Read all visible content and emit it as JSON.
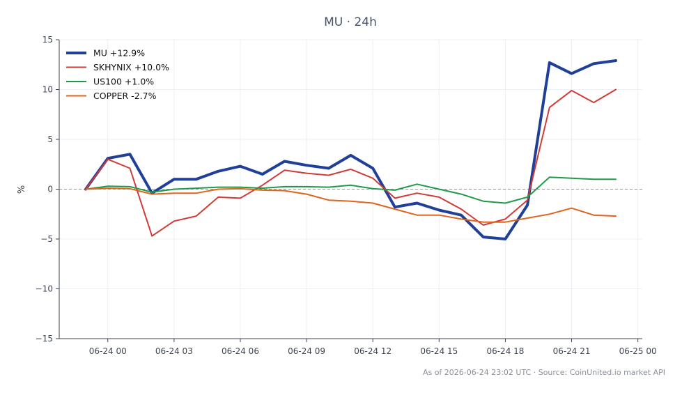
{
  "chart_data": {
    "type": "line",
    "title": "MU · 24h",
    "xlabel": "",
    "ylabel": "%",
    "ylim": [
      -15,
      15
    ],
    "yticks": [
      15,
      10,
      5,
      0,
      -5,
      -10,
      -15
    ],
    "yticklabels": [
      "15",
      "10",
      "5",
      "0",
      "−5",
      "−10",
      "−15"
    ],
    "x_hours": [
      -1,
      0,
      1,
      2,
      3,
      4,
      5,
      6,
      7,
      8,
      9,
      10,
      11,
      12,
      13,
      14,
      15,
      16,
      17,
      18,
      19,
      20,
      21,
      22,
      23
    ],
    "x_range_hours": [
      -2.2,
      24.2
    ],
    "x_ticks": [
      {
        "hour": 0,
        "label": "06-24 00"
      },
      {
        "hour": 3,
        "label": "06-24 03"
      },
      {
        "hour": 6,
        "label": "06-24 06"
      },
      {
        "hour": 9,
        "label": "06-24 09"
      },
      {
        "hour": 12,
        "label": "06-24 12"
      },
      {
        "hour": 15,
        "label": "06-24 15"
      },
      {
        "hour": 18,
        "label": "06-24 18"
      },
      {
        "hour": 21,
        "label": "06-24 21"
      },
      {
        "hour": 24,
        "label": "06-25 00"
      }
    ],
    "grid": true,
    "zero_line": true,
    "legend_position": "top-left",
    "series": [
      {
        "name": "MU +12.9%",
        "color": "#1f3f99",
        "width": 4,
        "values": [
          0,
          3.1,
          3.5,
          -0.4,
          1.0,
          1.0,
          1.8,
          2.3,
          1.5,
          2.8,
          2.4,
          2.1,
          3.4,
          2.1,
          -1.8,
          -1.4,
          -2.1,
          -2.6,
          -4.8,
          -5.0,
          -1.6,
          12.7,
          11.6,
          12.6,
          12.9
        ]
      },
      {
        "name": "SKHYNIX +10.0%",
        "color": "#d13a36",
        "width": 2,
        "values": [
          0,
          3.0,
          2.1,
          -4.7,
          -3.2,
          -2.7,
          -0.8,
          -0.9,
          0.4,
          1.9,
          1.6,
          1.4,
          2.0,
          1.1,
          -0.9,
          -0.4,
          -0.8,
          -2.0,
          -3.6,
          -3.0,
          -1.1,
          8.2,
          9.9,
          8.7,
          10.0
        ]
      },
      {
        "name": "US100 +1.0%",
        "color": "#1f9b47",
        "width": 2,
        "values": [
          0,
          0.3,
          0.25,
          -0.3,
          0.0,
          0.1,
          0.2,
          0.2,
          0.1,
          0.25,
          0.25,
          0.2,
          0.4,
          0.05,
          -0.1,
          0.5,
          0.0,
          -0.5,
          -1.2,
          -1.4,
          -0.8,
          1.2,
          1.1,
          1.0,
          1.0
        ]
      },
      {
        "name": "COPPER -2.7%",
        "color": "#e0641c",
        "width": 2,
        "values": [
          0,
          0.1,
          0.05,
          -0.5,
          -0.4,
          -0.4,
          0.0,
          0.05,
          -0.1,
          -0.15,
          -0.5,
          -1.1,
          -1.2,
          -1.4,
          -2.0,
          -2.6,
          -2.6,
          -3.0,
          -3.3,
          -3.3,
          -2.9,
          -2.5,
          -1.9,
          -2.6,
          -2.7
        ]
      }
    ]
  },
  "footer": "As of 2026-06-24 23:02 UTC · Source: CoinUnited.io market API"
}
